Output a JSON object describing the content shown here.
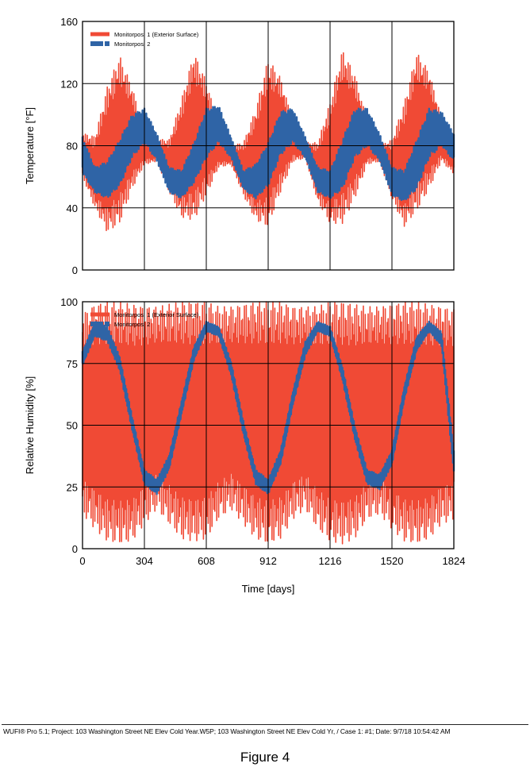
{
  "chart_data": [
    {
      "type": "line",
      "ylabel": "Temperature [°F]",
      "ylim": [
        0,
        160
      ],
      "yticks": [
        0,
        40,
        80,
        120,
        160
      ],
      "xlim": [
        0,
        1824
      ],
      "x_tick_count": 6,
      "grid": true,
      "legend": "top-left",
      "series": [
        {
          "name": "Monitorpos. 1 (Exterior Surface)",
          "color": "#f04a35",
          "envelope": {
            "max": [
              88,
              86,
              118,
              138,
              118,
              90,
              84,
              84,
              110,
              140,
              122,
              92,
              80,
              82,
              104,
              136,
              124,
              96,
              82,
              82,
              108,
              142,
              126,
              96,
              80,
              84,
              108,
              140,
              128,
              98,
              84
            ],
            "min": [
              60,
              40,
              24,
              30,
              52,
              68,
              70,
              50,
              34,
              32,
              48,
              66,
              68,
              48,
              32,
              28,
              50,
              70,
              72,
              44,
              30,
              30,
              46,
              68,
              70,
              46,
              28,
              38,
              52,
              70,
              62
            ]
          }
        },
        {
          "name": "Monitorpos. 2",
          "color": "#2f64a6",
          "envelope": {
            "max": [
              86,
              66,
              70,
              84,
              100,
              104,
              88,
              66,
              64,
              82,
              104,
              106,
              86,
              64,
              68,
              82,
              102,
              104,
              86,
              66,
              64,
              84,
              104,
              104,
              88,
              66,
              64,
              84,
              104,
              102,
              88
            ],
            "min": [
              62,
              50,
              46,
              54,
              72,
              82,
              70,
              50,
              46,
              56,
              72,
              82,
              72,
              52,
              46,
              54,
              74,
              82,
              72,
              50,
              46,
              52,
              72,
              80,
              70,
              48,
              44,
              52,
              72,
              80,
              70
            ]
          }
        }
      ]
    },
    {
      "type": "line",
      "xlabel": "Time [days]",
      "ylabel": "Relative Humidity [%]",
      "ylim": [
        0,
        100
      ],
      "yticks": [
        0,
        25,
        50,
        75,
        100
      ],
      "xlim": [
        0,
        1824
      ],
      "xticks": [
        0,
        304,
        608,
        912,
        1216,
        1520,
        1824
      ],
      "grid": true,
      "legend": "top-left",
      "series": [
        {
          "name": "Monitorpos. 1 (Exterior Surface)",
          "color": "#f04a35",
          "envelope": {
            "max": [
              95,
              99,
              100,
              100,
              99,
              98,
              98,
              99,
              100,
              100,
              100,
              98,
              98,
              99,
              100,
              100,
              100,
              98,
              98,
              98,
              100,
              100,
              99,
              98,
              98,
              99,
              100,
              100,
              99,
              98,
              97
            ],
            "min": [
              14,
              8,
              3,
              2,
              3,
              10,
              16,
              10,
              4,
              3,
              4,
              12,
              16,
              10,
              4,
              2,
              4,
              12,
              16,
              8,
              3,
              2,
              4,
              12,
              14,
              8,
              3,
              2,
              4,
              10,
              12
            ]
          }
        },
        {
          "name": "Monitorpos. 2",
          "color": "#2f64a6",
          "envelope": {
            "max": [
              80,
              92,
              90,
              78,
              54,
              32,
              28,
              38,
              60,
              82,
              92,
              90,
              76,
              52,
              32,
              28,
              40,
              64,
              84,
              92,
              90,
              74,
              50,
              32,
              30,
              40,
              66,
              86,
              92,
              88,
              40
            ],
            "min": [
              74,
              86,
              84,
              72,
              48,
              26,
              22,
              32,
              54,
              76,
              88,
              86,
              70,
              46,
              26,
              22,
              34,
              58,
              78,
              88,
              86,
              68,
              44,
              26,
              24,
              34,
              60,
              80,
              88,
              82,
              30
            ]
          }
        }
      ]
    }
  ],
  "footer": "WUFI® Pro 5.1; Project: 103 Washington Street NE Elev Cold Year.W5P; 103 Washington Street NE Elev Cold Yr, / Case 1: #1; Date: 9/7/18 10:54:42 AM",
  "caption": "Figure 4"
}
